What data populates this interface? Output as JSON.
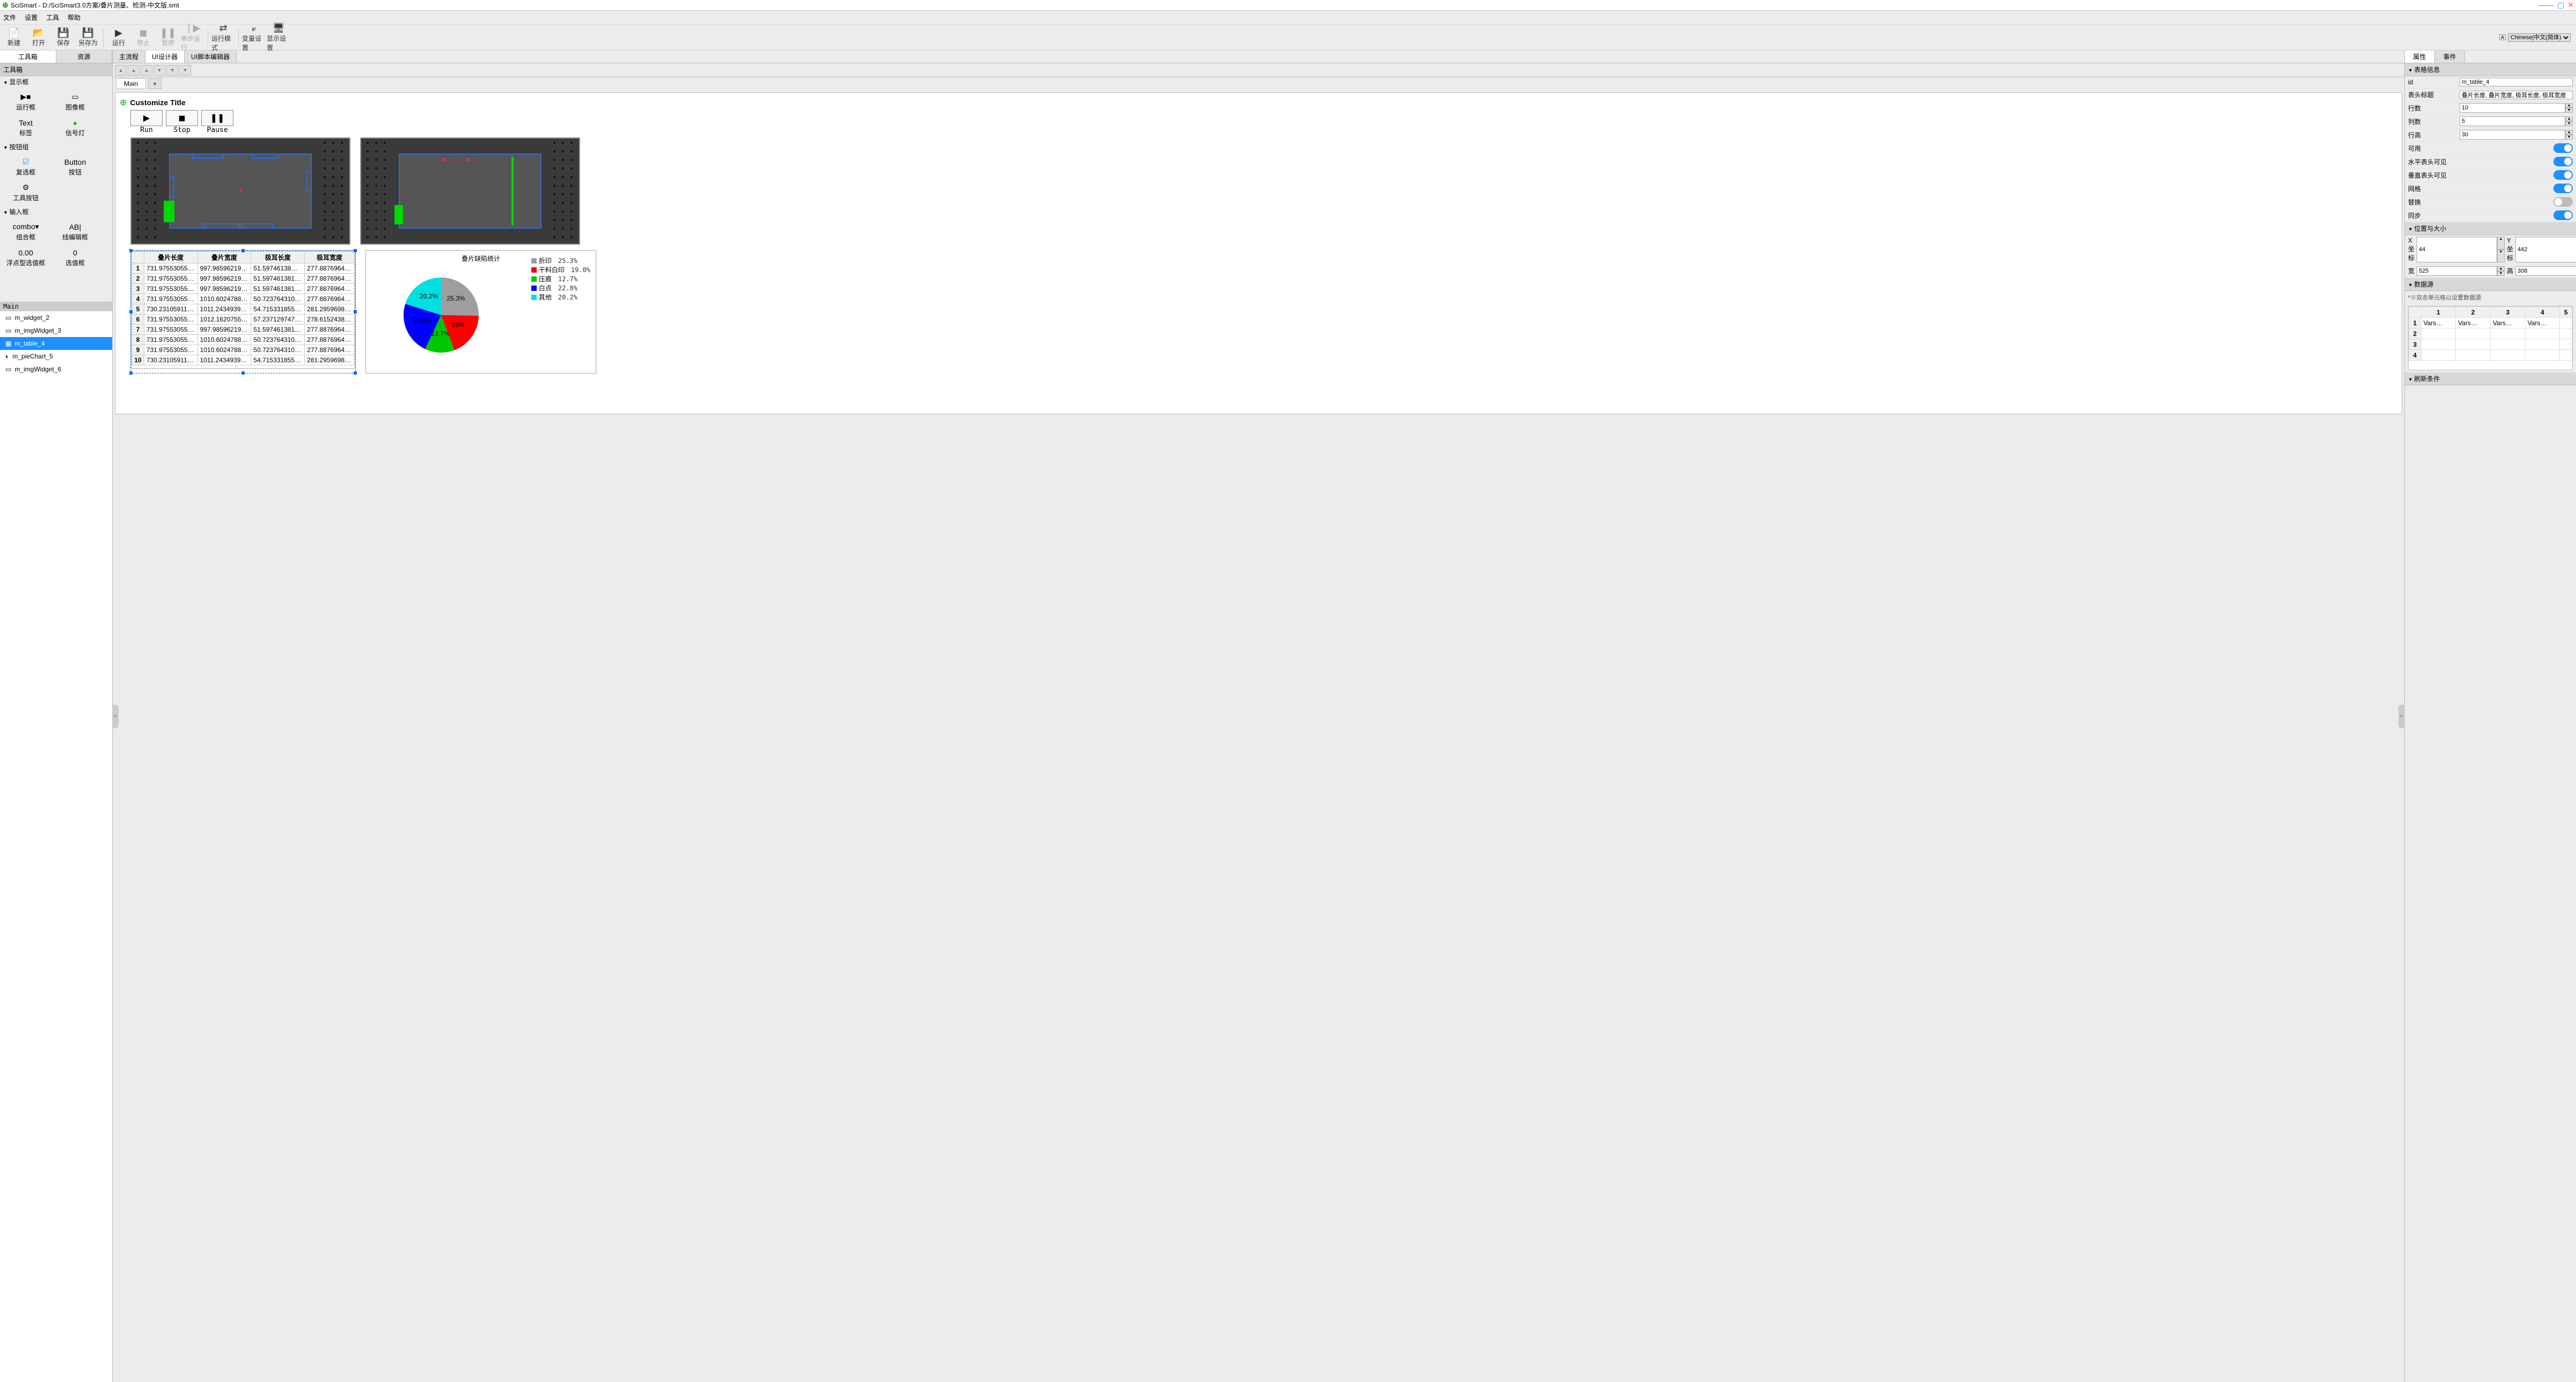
{
  "title": "SciSmart - D:/SciSmart3.0方案/叠片测量、检测-中文版.smt",
  "menu": {
    "file": "文件",
    "settings": "设置",
    "tools": "工具",
    "help": "帮助"
  },
  "toolbar": {
    "new": "新建",
    "open": "打开",
    "save": "保存",
    "saveas": "另存为",
    "run": "运行",
    "stop": "停止",
    "pause": "暂停",
    "step": "单步运行",
    "runmode": "运行模式",
    "varset": "变量设置",
    "dispset": "显示设置"
  },
  "language_label": "Chinese|中文(简体)",
  "left_tabs": {
    "toolbox": "工具箱",
    "resource": "资源"
  },
  "panel_toolbox_hdr": "工具箱",
  "tgroups": [
    {
      "name": "显示框",
      "items": [
        {
          "label": "运行框",
          "ico": "▶■"
        },
        {
          "label": "图像框",
          "ico": "▭"
        },
        {
          "label": "标签",
          "ico": "Text"
        },
        {
          "label": "信号灯",
          "ico": "●",
          "color": "#0c0"
        }
      ]
    },
    {
      "name": "按钮组",
      "items": [
        {
          "label": "复选框",
          "ico": "☑",
          "color": "#1e90ff"
        },
        {
          "label": "按钮",
          "ico": "Button"
        },
        {
          "label": "工具按钮",
          "ico": "⚙"
        }
      ]
    },
    {
      "name": "输入框",
      "items": [
        {
          "label": "组合框",
          "ico": "combo▾"
        },
        {
          "label": "线编辑框",
          "ico": "AB|"
        },
        {
          "label": "浮点型选值框",
          "ico": "0.00"
        },
        {
          "label": "选值框",
          "ico": "0"
        }
      ]
    }
  ],
  "hier_hdr": "Main",
  "hier": [
    {
      "label": "m_widget_2",
      "ico": "▭"
    },
    {
      "label": "m_imgWidget_3",
      "ico": "▭"
    },
    {
      "label": "m_table_4",
      "ico": "▦",
      "sel": true
    },
    {
      "label": "m_pieChart_5",
      "ico": "◐"
    },
    {
      "label": "m_imgWidget_6",
      "ico": "▭"
    }
  ],
  "center_tabs": {
    "main": "主流程",
    "uidesigner": "UI设计器",
    "uiscript": "UI脚本编辑器"
  },
  "subtab_main": "Main",
  "canvas_title": "Customize Title",
  "runbtns": {
    "run": "Run",
    "stop": "Stop",
    "pause": "Pause"
  },
  "img2_redtxt": "■…………■  ……",
  "table": {
    "columns": [
      "",
      "叠片长度",
      "叠片宽度",
      "极耳长度",
      "极耳宽度"
    ],
    "rows": [
      [
        "1",
        "731.97553055…",
        "997.98596219…",
        "51.59746138…",
        "277.8876964…"
      ],
      [
        "2",
        "731.97553055…",
        "997.98596219…",
        "51.597461381…",
        "277.8876964…"
      ],
      [
        "3",
        "731.97553055…",
        "997.98596219…",
        "51.597461381…",
        "277.8876964…"
      ],
      [
        "4",
        "731.97553055…",
        "1010.6024788…",
        "50.723764310…",
        "277.8876964…"
      ],
      [
        "5",
        "730.23105911…",
        "1011.2434939…",
        "54.715331855…",
        "281.2959698…"
      ],
      [
        "6",
        "731.97553055…",
        "1012.1620755…",
        "57.237129747…",
        "278.6152438…"
      ],
      [
        "7",
        "731.97553055…",
        "997.98596219…",
        "51.597461381…",
        "277.8876964…"
      ],
      [
        "8",
        "731.97553055…",
        "1010.6024788…",
        "50.723764310…",
        "277.8876964…"
      ],
      [
        "9",
        "731.97553055…",
        "1010.6024788…",
        "50.723764310…",
        "277.8876964…"
      ],
      [
        "10",
        "730.23105911…",
        "1011.2434939…",
        "54.715331855…",
        "281.2959698…"
      ]
    ]
  },
  "pie": {
    "title": "叠片缺陷统计",
    "slices": [
      {
        "label": "折印",
        "value": 25.3,
        "color": "#9e9e9e"
      },
      {
        "label": "干料白印",
        "value": 19.0,
        "color": "#ff0000"
      },
      {
        "label": "压痕",
        "value": 12.7,
        "color": "#00c800"
      },
      {
        "label": "白点",
        "value": 22.8,
        "color": "#0000ff"
      },
      {
        "label": "其他",
        "value": 20.2,
        "color": "#00e0e0"
      }
    ]
  },
  "right_tabs": {
    "props": "属性",
    "events": "事件"
  },
  "propgroups": {
    "info_hdr": "表格信息",
    "id_lab": "id",
    "id_val": "m_table_4",
    "header_lab": "表头标题",
    "header_val": "叠片长度, 叠片宽度, 极耳长度, 极耳宽度",
    "rows_lab": "行数",
    "rows_val": "10",
    "cols_lab": "列数",
    "cols_val": "5",
    "rowh_lab": "行高",
    "rowh_val": "30",
    "enable_lab": "可用",
    "enable": true,
    "hhdr_lab": "水平表头可见",
    "hhdr": true,
    "vhdr_lab": "垂直表头可见",
    "vhdr": true,
    "grid_lab": "网格",
    "grid": true,
    "replace_lab": "替换",
    "replace": false,
    "sync_lab": "同步",
    "sync": true,
    "pos_hdr": "位置与大小",
    "x_lab": "X坐标",
    "x_val": "44",
    "y_lab": "Y坐标",
    "y_val": "442",
    "w_lab": "宽",
    "w_val": "525",
    "h_lab": "高",
    "h_val": "308",
    "ds_hdr": "数据源",
    "ds_note": "*※双击单元格以设置数据源",
    "ds_cols": [
      "",
      "1",
      "2",
      "3",
      "4",
      "5"
    ],
    "ds_rows": [
      [
        "1",
        "Vars…",
        "Vars…",
        "Vars…",
        "Vars…",
        ""
      ],
      [
        "2",
        "",
        "",
        "",
        "",
        ""
      ],
      [
        "3",
        "",
        "",
        "",
        "",
        ""
      ],
      [
        "4",
        "",
        "",
        "",
        "",
        ""
      ]
    ],
    "refresh_hdr": "刷新条件"
  }
}
